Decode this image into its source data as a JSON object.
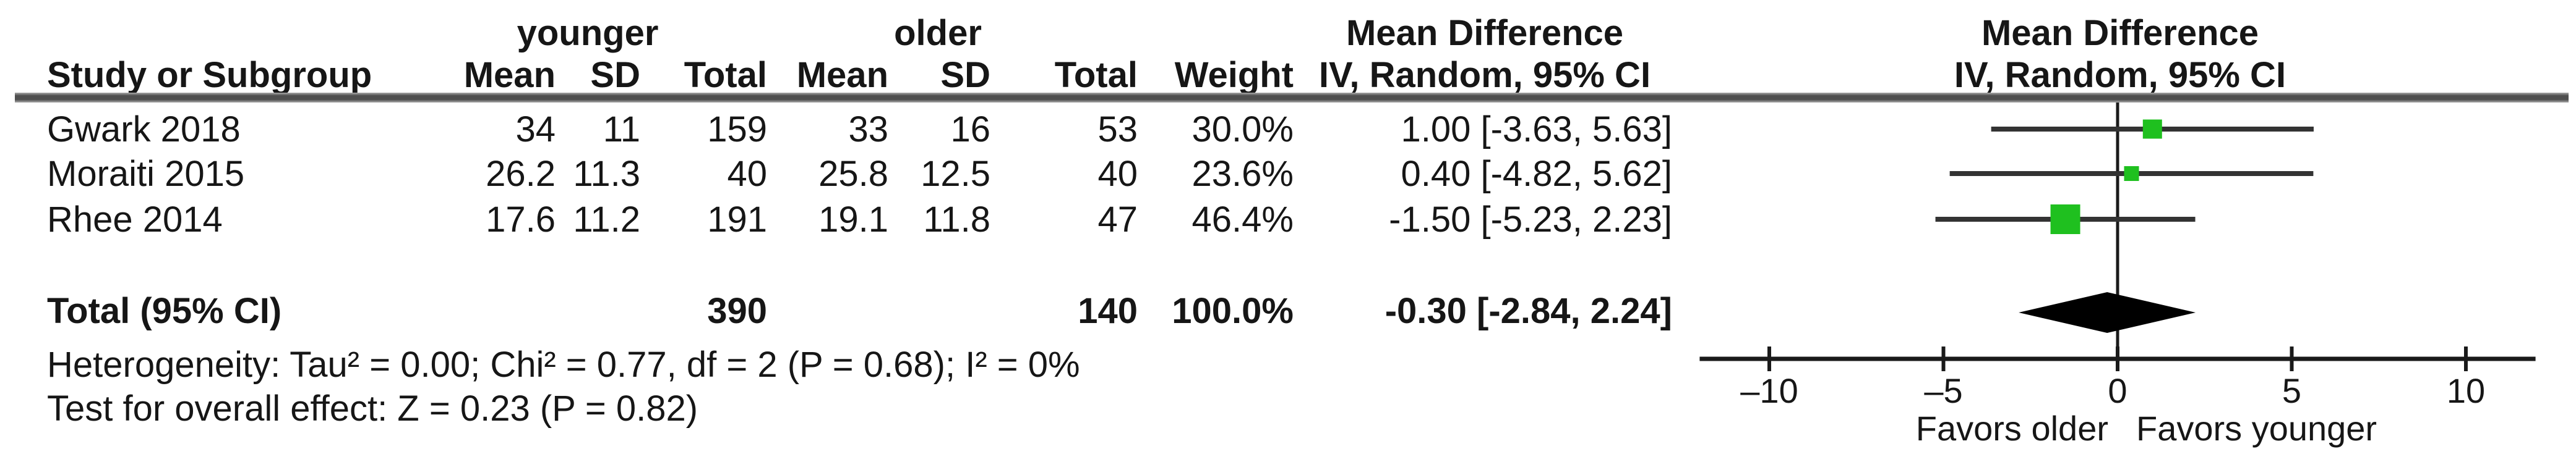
{
  "header": {
    "group_left": "younger",
    "group_right": "older",
    "col_study": "Study or Subgroup",
    "col_mean_left": "Mean",
    "col_sd_left": "SD",
    "col_total_left": "Total",
    "col_mean_right": "Mean",
    "col_sd_right": "SD",
    "col_total_right": "Total",
    "col_weight": "Weight",
    "effect_title": "Mean Difference",
    "effect_subtitle": "IV, Random, 95% CI",
    "plot_title": "Mean Difference",
    "plot_subtitle": "IV, Random, 95% CI"
  },
  "table": {
    "rows": [
      {
        "study": "Gwark 2018",
        "y_mean": "34",
        "y_sd": "11",
        "y_total": "159",
        "o_mean": "33",
        "o_sd": "16",
        "o_total": "53",
        "weight": "30.0%",
        "ci_text": "1.00 [-3.63, 5.63]"
      },
      {
        "study": "Moraiti 2015",
        "y_mean": "26.2",
        "y_sd": "11.3",
        "y_total": "40",
        "o_mean": "25.8",
        "o_sd": "12.5",
        "o_total": "40",
        "weight": "23.6%",
        "ci_text": "0.40 [-4.82, 5.62]"
      },
      {
        "study": "Rhee 2014",
        "y_mean": "17.6",
        "y_sd": "11.2",
        "y_total": "191",
        "o_mean": "19.1",
        "o_sd": "11.8",
        "o_total": "47",
        "weight": "46.4%",
        "ci_text": "-1.50 [-5.23, 2.23]"
      }
    ],
    "total": {
      "label": "Total (95% CI)",
      "y_total": "390",
      "o_total": "140",
      "weight": "100.0%",
      "ci_text": "-0.30 [-2.84, 2.24]"
    }
  },
  "footnotes": {
    "heterogeneity": "Heterogeneity: Tau² = 0.00; Chi² = 0.77, df = 2 (P = 0.68); I² = 0%",
    "overall_effect": "Test for overall effect: Z = 0.23 (P = 0.82)"
  },
  "axis_labels": {
    "favors_left": "Favors older",
    "favors_right": "Favors younger"
  },
  "chart_data": {
    "type": "forest",
    "effect_measure": "Mean Difference, IV, Random, 95% CI",
    "group_labels": [
      "younger",
      "older"
    ],
    "studies": [
      {
        "name": "Gwark 2018",
        "estimate": 1.0,
        "ci_low": -3.63,
        "ci_high": 5.63,
        "weight_pct": 30.0
      },
      {
        "name": "Moraiti 2015",
        "estimate": 0.4,
        "ci_low": -4.82,
        "ci_high": 5.62,
        "weight_pct": 23.6
      },
      {
        "name": "Rhee 2014",
        "estimate": -1.5,
        "ci_low": -5.23,
        "ci_high": 2.23,
        "weight_pct": 46.4
      }
    ],
    "total": {
      "name": "Total (95% CI)",
      "estimate": -0.3,
      "ci_low": -2.84,
      "ci_high": 2.24,
      "weight_pct": 100.0
    },
    "heterogeneity": {
      "tau2": 0.0,
      "chi2": 0.77,
      "df": 2,
      "p": 0.68,
      "i2_pct": 0
    },
    "overall_effect": {
      "z": 0.23,
      "p": 0.82
    },
    "axis": {
      "min": -12,
      "max": 12,
      "zero_line": 0,
      "ticks": [
        {
          "value": -10,
          "label": "–10"
        },
        {
          "value": -5,
          "label": "–5"
        },
        {
          "value": 0,
          "label": "0"
        },
        {
          "value": 5,
          "label": "5"
        },
        {
          "value": 10,
          "label": "10"
        }
      ]
    },
    "xlabel_left": "Favors older",
    "xlabel_right": "Favors younger",
    "colors": {
      "marker": "#1fc01f",
      "diamond": "#000000",
      "ci_line": "#333333",
      "axis": "#1a1a1a"
    }
  }
}
